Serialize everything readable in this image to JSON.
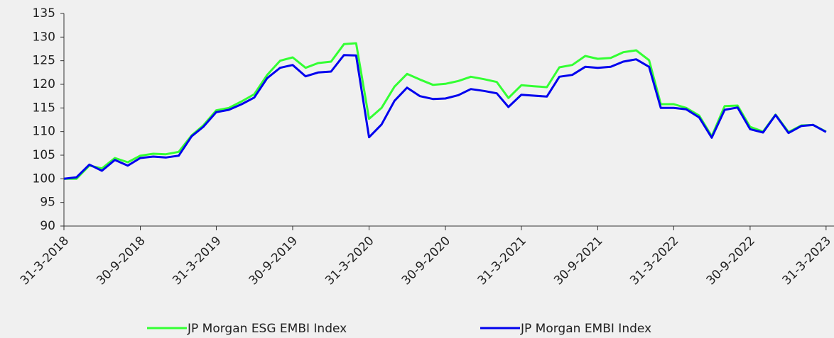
{
  "chart_data": {
    "type": "line",
    "x": [
      "2018-03-31",
      "2018-04-30",
      "2018-05-31",
      "2018-06-30",
      "2018-07-31",
      "2018-08-31",
      "2018-09-30",
      "2018-10-31",
      "2018-11-30",
      "2018-12-31",
      "2019-01-31",
      "2019-02-28",
      "2019-03-31",
      "2019-04-30",
      "2019-05-31",
      "2019-06-30",
      "2019-07-31",
      "2019-08-31",
      "2019-09-30",
      "2019-10-31",
      "2019-11-30",
      "2019-12-31",
      "2020-01-31",
      "2020-02-29",
      "2020-03-31",
      "2020-04-30",
      "2020-05-31",
      "2020-06-30",
      "2020-07-31",
      "2020-08-31",
      "2020-09-30",
      "2020-10-31",
      "2020-11-30",
      "2020-12-31",
      "2021-01-31",
      "2021-02-28",
      "2021-03-31",
      "2021-04-30",
      "2021-05-31",
      "2021-06-30",
      "2021-07-31",
      "2021-08-31",
      "2021-09-30",
      "2021-10-31",
      "2021-11-30",
      "2021-12-31",
      "2022-01-31",
      "2022-02-28",
      "2022-03-31",
      "2022-04-30",
      "2022-05-31",
      "2022-06-30",
      "2022-07-31",
      "2022-08-31",
      "2022-09-30",
      "2022-10-31",
      "2022-11-30",
      "2022-12-31",
      "2023-01-31",
      "2023-02-28",
      "2023-03-31"
    ],
    "series": [
      {
        "name": "JP Morgan ESG EMBI Index",
        "color": "#33ff33",
        "values": [
          100,
          100,
          102.8,
          102.2,
          104.4,
          103.5,
          104.9,
          105.3,
          105.2,
          105.7,
          109.2,
          111.3,
          114.5,
          115,
          116.4,
          117.9,
          122,
          125,
          125.7,
          123.5,
          124.5,
          124.8,
          128.5,
          128.7,
          112.7,
          115,
          119.5,
          122.2,
          121,
          119.9,
          120.1,
          120.7,
          121.6,
          121.1,
          120.5,
          117.1,
          119.8,
          119.6,
          119.4,
          123.6,
          124.1,
          126,
          125.4,
          125.6,
          126.8,
          127.2,
          125.1,
          115.8,
          115.8,
          115,
          113.4,
          109,
          115.4,
          115.5,
          111,
          110,
          113.6,
          109.9,
          111.3,
          111.4,
          110
        ]
      },
      {
        "name": "JP Morgan EMBI Index",
        "color": "#0000ee",
        "values": [
          100,
          100.3,
          103,
          101.7,
          104,
          102.8,
          104.4,
          104.7,
          104.5,
          104.9,
          109,
          111,
          114.1,
          114.6,
          115.8,
          117.2,
          121.3,
          123.5,
          124.1,
          121.7,
          122.5,
          122.7,
          126.2,
          126.1,
          108.8,
          111.5,
          116.5,
          119.3,
          117.5,
          116.9,
          117,
          117.7,
          119,
          118.6,
          118.1,
          115.2,
          117.8,
          117.6,
          117.4,
          121.6,
          122,
          123.7,
          123.5,
          123.7,
          124.8,
          125.3,
          123.7,
          115,
          115,
          114.7,
          113,
          108.7,
          114.6,
          115.1,
          110.5,
          109.8,
          113.5,
          109.7,
          111.2,
          111.4,
          109.9
        ]
      }
    ],
    "xlim": [
      "2018-03-31",
      "2023-04-19"
    ],
    "xticks": [
      {
        "value": "2018-03-31",
        "label": "31-3-2018"
      },
      {
        "value": "2018-09-30",
        "label": "30-9-2018"
      },
      {
        "value": "2019-03-31",
        "label": "31-3-2019"
      },
      {
        "value": "2019-09-30",
        "label": "30-9-2019"
      },
      {
        "value": "2020-03-31",
        "label": "31-3-2020"
      },
      {
        "value": "2020-09-30",
        "label": "30-9-2020"
      },
      {
        "value": "2021-03-31",
        "label": "31-3-2021"
      },
      {
        "value": "2021-09-30",
        "label": "30-9-2021"
      },
      {
        "value": "2022-03-31",
        "label": "31-3-2022"
      },
      {
        "value": "2022-09-30",
        "label": "30-9-2022"
      },
      {
        "value": "2023-03-31",
        "label": "31-3-2023"
      }
    ],
    "ylim": [
      90,
      135
    ],
    "yticks": [
      90,
      95,
      100,
      105,
      110,
      115,
      120,
      125,
      130,
      135
    ],
    "legend": "bottom"
  }
}
